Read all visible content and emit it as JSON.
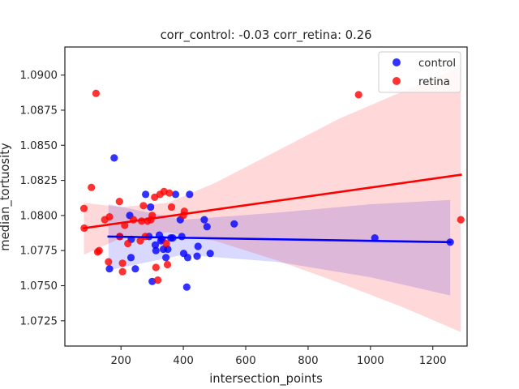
{
  "chart_data": {
    "type": "scatter",
    "title": "corr_control: -0.03  corr_retina: 0.26",
    "xlabel": "intersection_points",
    "ylabel": "median_tortuosity",
    "xlim": [
      20,
      1310
    ],
    "ylim": [
      1.0707,
      1.092
    ],
    "xticks": [
      200,
      400,
      600,
      800,
      1000,
      1200
    ],
    "xtick_labels": [
      "200",
      "400",
      "600",
      "800",
      "1000",
      "1200"
    ],
    "yticks": [
      1.0725,
      1.075,
      1.0775,
      1.08,
      1.0825,
      1.085,
      1.0875,
      1.09
    ],
    "ytick_labels": [
      "1.0725",
      "1.0750",
      "1.0775",
      "1.0800",
      "1.0825",
      "1.0850",
      "1.0875",
      "1.0900"
    ],
    "grid": false,
    "legend_position": "top-right",
    "series": [
      {
        "name": "control",
        "color": "#0000ff",
        "points": [
          [
            178,
            1.0841
          ],
          [
            163,
            1.0762
          ],
          [
            196,
            1.0785
          ],
          [
            228,
            1.08
          ],
          [
            232,
            1.077
          ],
          [
            233,
            1.0783
          ],
          [
            246,
            1.0762
          ],
          [
            279,
            1.0815
          ],
          [
            290,
            1.0785
          ],
          [
            295,
            1.0806
          ],
          [
            300,
            1.0753
          ],
          [
            310,
            1.0779
          ],
          [
            312,
            1.0775
          ],
          [
            323,
            1.0786
          ],
          [
            328,
            1.0782
          ],
          [
            332,
            1.0783
          ],
          [
            336,
            1.0776
          ],
          [
            344,
            1.077
          ],
          [
            350,
            1.0776
          ],
          [
            360,
            1.0784
          ],
          [
            366,
            1.0784
          ],
          [
            375,
            1.0815
          ],
          [
            390,
            1.0797
          ],
          [
            395,
            1.0785
          ],
          [
            401,
            1.0773
          ],
          [
            411,
            1.0749
          ],
          [
            414,
            1.077
          ],
          [
            420,
            1.0815
          ],
          [
            444,
            1.0771
          ],
          [
            447,
            1.0778
          ],
          [
            467,
            1.0797
          ],
          [
            476,
            1.0792
          ],
          [
            486,
            1.0773
          ],
          [
            563,
            1.0794
          ],
          [
            1014,
            1.0784
          ],
          [
            1256,
            1.0781
          ]
        ],
        "fit": {
          "x": [
            160,
            1256
          ],
          "y": [
            1.0785,
            1.0781
          ]
        },
        "ci_band": {
          "x": [
            160,
            400,
            700,
            1000,
            1256
          ],
          "lo": [
            1.0761,
            1.0772,
            1.0767,
            1.0756,
            1.0743
          ],
          "hi": [
            1.0808,
            1.0797,
            1.0802,
            1.0808,
            1.0811
          ]
        }
      },
      {
        "name": "retina",
        "color": "#ff0000",
        "points": [
          [
            81,
            1.0805
          ],
          [
            82,
            1.0791
          ],
          [
            105,
            1.082
          ],
          [
            120,
            1.0887
          ],
          [
            125,
            1.0774
          ],
          [
            130,
            1.0775
          ],
          [
            148,
            1.0797
          ],
          [
            160,
            1.0767
          ],
          [
            163,
            1.0799
          ],
          [
            195,
            1.081
          ],
          [
            196,
            1.0785
          ],
          [
            205,
            1.0766
          ],
          [
            205,
            1.076
          ],
          [
            212,
            1.0793
          ],
          [
            222,
            1.078
          ],
          [
            240,
            1.0797
          ],
          [
            262,
            1.0782
          ],
          [
            266,
            1.0796
          ],
          [
            272,
            1.0807
          ],
          [
            278,
            1.0785
          ],
          [
            285,
            1.0796
          ],
          [
            296,
            1.0797
          ],
          [
            300,
            1.08
          ],
          [
            308,
            1.0813
          ],
          [
            312,
            1.0763
          ],
          [
            318,
            1.0754
          ],
          [
            325,
            1.0815
          ],
          [
            338,
            1.0817
          ],
          [
            345,
            1.078
          ],
          [
            349,
            1.0765
          ],
          [
            355,
            1.0816
          ],
          [
            362,
            1.0806
          ],
          [
            400,
            1.08
          ],
          [
            403,
            1.0803
          ],
          [
            962,
            1.0886
          ],
          [
            1290,
            1.0797
          ]
        ],
        "fit": {
          "x": [
            81,
            1290
          ],
          "y": [
            1.0791,
            1.0829
          ]
        },
        "ci_band": {
          "x": [
            81,
            200,
            350,
            500,
            700,
            900,
            1100,
            1290
          ],
          "lo": [
            1.0772,
            1.0784,
            1.0788,
            1.0782,
            1.0768,
            1.0752,
            1.0735,
            1.0717
          ],
          "hi": [
            1.0809,
            1.0806,
            1.0809,
            1.0823,
            1.0846,
            1.0869,
            1.0888,
            1.0906
          ]
        }
      }
    ]
  }
}
